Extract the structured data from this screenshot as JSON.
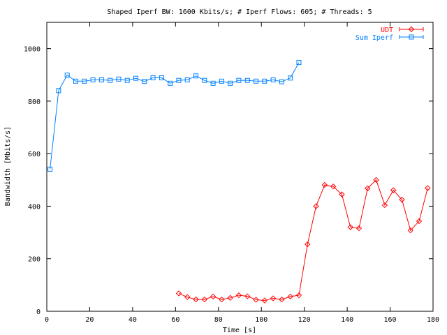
{
  "chart_data": {
    "type": "line",
    "title": "Shaped Iperf BW: 1600 Kbits/s; # Iperf Flows: 605; # Threads: 5",
    "xlabel": "Time [s]",
    "ylabel": "Bandwidth [Mbits/s]",
    "xlim": [
      0,
      180
    ],
    "ylim": [
      0,
      1100
    ],
    "xticks": [
      0,
      20,
      40,
      60,
      80,
      100,
      120,
      140,
      160,
      180
    ],
    "yticks": [
      0,
      200,
      400,
      600,
      800,
      1000
    ],
    "grid": false,
    "legend_position": "top-right",
    "series": [
      {
        "name": "UDT",
        "color": "#ff0000",
        "marker": "diamond",
        "x": [
          61.5,
          65.5,
          69.5,
          73.5,
          77.5,
          81.5,
          85.5,
          89.5,
          93.5,
          97.5,
          101.5,
          105.5,
          109.5,
          113.5,
          117.5,
          121.5,
          125.5,
          129.5,
          133.5,
          137.5,
          141.5,
          145.5,
          149.5,
          153.5,
          157.5,
          161.5,
          165.5,
          169.5,
          173.5,
          177.5
        ],
        "y": [
          68,
          54,
          45,
          45,
          56,
          45,
          51,
          61,
          57,
          44,
          41,
          49,
          45,
          56,
          61,
          255,
          400,
          481,
          475,
          445,
          320,
          316,
          468,
          500,
          404,
          461,
          425,
          308,
          343,
          469
        ]
      },
      {
        "name": "Sum Iperf",
        "color": "#0080ff",
        "marker": "square",
        "x": [
          1.5,
          5.5,
          9.5,
          13.5,
          17.5,
          21.5,
          25.5,
          29.5,
          33.5,
          37.5,
          41.5,
          45.5,
          49.5,
          53.5,
          57.5,
          61.5,
          65.5,
          69.5,
          73.5,
          77.5,
          81.5,
          85.5,
          89.5,
          93.5,
          97.5,
          101.5,
          105.5,
          109.5,
          113.5,
          117.5
        ],
        "y": [
          541,
          840,
          899,
          876,
          876,
          881,
          881,
          879,
          884,
          879,
          887,
          875,
          889,
          889,
          868,
          879,
          881,
          896,
          879,
          868,
          876,
          868,
          879,
          879,
          876,
          876,
          881,
          874,
          888,
          947
        ]
      }
    ]
  }
}
